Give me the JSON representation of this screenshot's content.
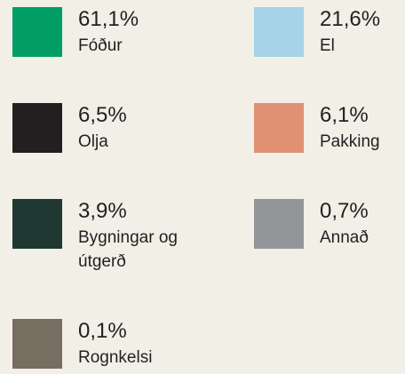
{
  "items": [
    {
      "value": "61,1%",
      "label": "Fóður",
      "color": "#009e66"
    },
    {
      "value": "21,6%",
      "label": "El",
      "color": "#a6d3e8"
    },
    {
      "value": "6,5%",
      "label": "Olja",
      "color": "#231f20"
    },
    {
      "value": "6,1%",
      "label": "Pakking",
      "color": "#e09073"
    },
    {
      "value": "3,9%",
      "label": "Bygningar og útgerð",
      "color": "#1f3832"
    },
    {
      "value": "0,7%",
      "label": "Annað",
      "color": "#939598"
    },
    {
      "value": "0,1%",
      "label": "Rognkelsi",
      "color": "#786d61"
    }
  ]
}
